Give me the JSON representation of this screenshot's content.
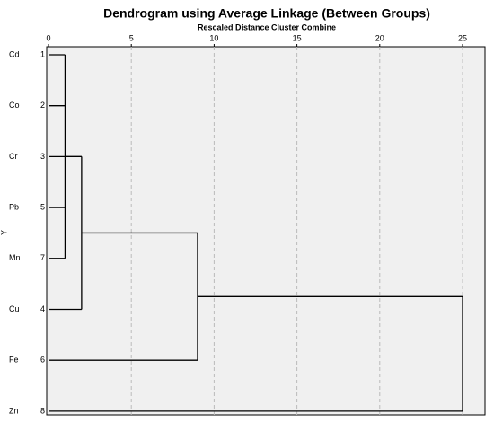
{
  "chart_data": {
    "type": "dendrogram",
    "title": "Dendrogram using Average Linkage (Between Groups)",
    "subtitle": "Rescaled Distance Cluster Combine",
    "y_label": "Y",
    "leaves": [
      {
        "label": "Cd",
        "case": 1
      },
      {
        "label": "Co",
        "case": 2
      },
      {
        "label": "Cr",
        "case": 3
      },
      {
        "label": "Pb",
        "case": 5
      },
      {
        "label": "Mn",
        "case": 7
      },
      {
        "label": "Cu",
        "case": 4
      },
      {
        "label": "Fe",
        "case": 6
      },
      {
        "label": "Zn",
        "case": 8
      }
    ],
    "merges": [
      {
        "leaves": [
          0,
          1,
          3,
          4
        ],
        "merges": [],
        "height": 1
      },
      {
        "leaves": [
          2,
          5
        ],
        "merges": [
          0
        ],
        "height": 2
      },
      {
        "leaves": [
          6
        ],
        "merges": [
          1
        ],
        "height": 9
      },
      {
        "leaves": [
          7
        ],
        "merges": [
          2
        ],
        "height": 25
      }
    ],
    "xlim": [
      0,
      25
    ],
    "xticks": [
      0,
      5,
      10,
      15,
      20,
      25
    ],
    "grid": true,
    "color": "#000000"
  }
}
